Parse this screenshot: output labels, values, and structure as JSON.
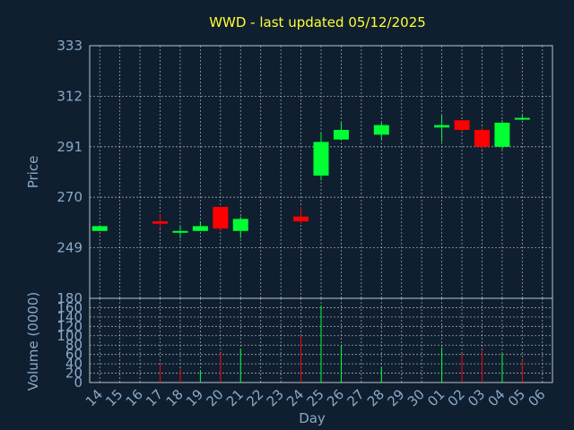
{
  "title": "WWD - last updated 05/12/2025",
  "colors": {
    "background": "#0f1f30",
    "title": "#ffff33",
    "text": "#8aa9c8",
    "up": "#00ff33",
    "down": "#ff0000",
    "grid": "#c8d0d8"
  },
  "chart_data": [
    {
      "type": "candlestick",
      "ylabel": "Price",
      "ylim": [
        228,
        333
      ],
      "yticks": [
        249,
        270,
        291,
        312,
        333
      ],
      "grid": true,
      "candles": [
        {
          "day": "14",
          "open": 256,
          "high": 258,
          "low": 256,
          "close": 258
        },
        {
          "day": "17",
          "open": 260,
          "high": 263,
          "low": 257,
          "close": 259
        },
        {
          "day": "18",
          "open": 256,
          "high": 258,
          "low": 253,
          "close": 256
        },
        {
          "day": "19",
          "open": 256,
          "high": 260,
          "low": 256,
          "close": 258
        },
        {
          "day": "20",
          "open": 266,
          "high": 266,
          "low": 256,
          "close": 257
        },
        {
          "day": "21",
          "open": 256,
          "high": 262,
          "low": 253,
          "close": 261
        },
        {
          "day": "24",
          "open": 262,
          "high": 266,
          "low": 259,
          "close": 260
        },
        {
          "day": "25",
          "open": 279,
          "high": 297,
          "low": 277,
          "close": 293
        },
        {
          "day": "26",
          "open": 294,
          "high": 301,
          "low": 294,
          "close": 298
        },
        {
          "day": "28",
          "open": 296,
          "high": 301,
          "low": 294,
          "close": 300
        },
        {
          "day": "01",
          "open": 299,
          "high": 304,
          "low": 293,
          "close": 300
        },
        {
          "day": "02",
          "open": 302,
          "high": 302,
          "low": 297,
          "close": 298
        },
        {
          "day": "05",
          "open": 303,
          "high": 304,
          "low": 302,
          "close": 303
        }
      ]
    },
    {
      "type": "bar",
      "xlabel": "Day",
      "ylabel": "Volume (0000)",
      "ylim": [
        0,
        180
      ],
      "yticks": [
        0,
        20,
        40,
        60,
        80,
        100,
        120,
        140,
        160,
        180
      ],
      "grid": true,
      "categories": [
        "14",
        "15",
        "16",
        "17",
        "18",
        "19",
        "20",
        "21",
        "22",
        "23",
        "24",
        "25",
        "26",
        "27",
        "28",
        "29",
        "30",
        "01",
        "02",
        "03",
        "04",
        "05",
        "06"
      ],
      "bars": [
        {
          "day": "17",
          "value": 40,
          "dir": "down"
        },
        {
          "day": "18",
          "value": 30,
          "dir": "down"
        },
        {
          "day": "19",
          "value": 25,
          "dir": "up"
        },
        {
          "day": "20",
          "value": 63,
          "dir": "down"
        },
        {
          "day": "21",
          "value": 72,
          "dir": "up"
        },
        {
          "day": "24",
          "value": 101,
          "dir": "down"
        },
        {
          "day": "25",
          "value": 165,
          "dir": "up"
        },
        {
          "day": "26",
          "value": 80,
          "dir": "up"
        },
        {
          "day": "28",
          "value": 33,
          "dir": "up"
        },
        {
          "day": "01",
          "value": 75,
          "dir": "up"
        },
        {
          "day": "02",
          "value": 62,
          "dir": "down"
        },
        {
          "day": "03",
          "value": 68,
          "dir": "down"
        },
        {
          "day": "04",
          "value": 61,
          "dir": "up"
        },
        {
          "day": "05",
          "value": 48,
          "dir": "down"
        }
      ]
    }
  ],
  "gaps": [
    {
      "day": "03",
      "open": 298,
      "high": 299,
      "low": 290,
      "close": 291
    },
    {
      "day": "04",
      "open": 291,
      "high": 302,
      "low": 290,
      "close": 301
    }
  ]
}
